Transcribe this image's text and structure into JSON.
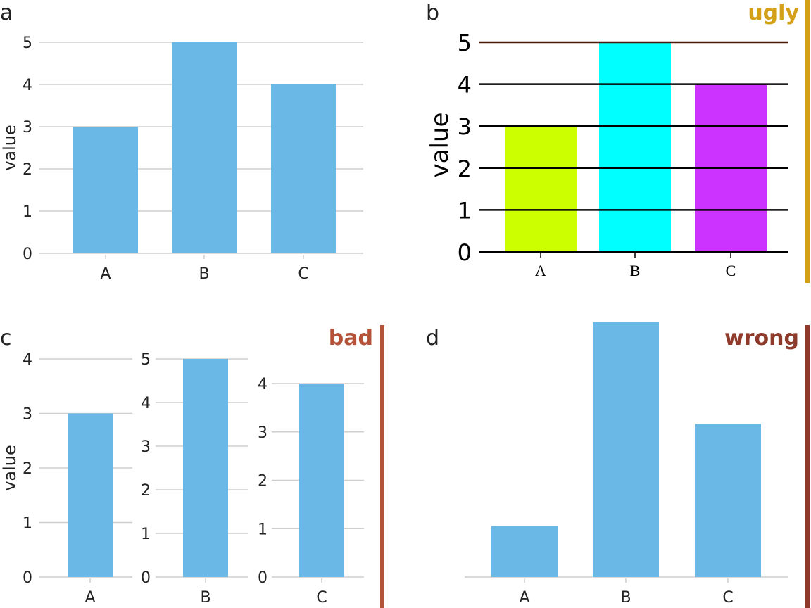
{
  "panels": {
    "a": {
      "letter": "a"
    },
    "b": {
      "letter": "b",
      "tag": "ugly"
    },
    "c": {
      "letter": "c",
      "tag": "bad"
    },
    "d": {
      "letter": "d",
      "tag": "wrong"
    }
  },
  "colors": {
    "bar": "#69B8E6",
    "grid": "#cfcfcf",
    "ugly_tag": "#D4A017",
    "bad_tag": "#B4533A",
    "wrong_tag": "#8F3B2C",
    "ugly_bar_A": "#CCFF00",
    "ugly_bar_B": "#00FFFF",
    "ugly_bar_C": "#CC33FF"
  },
  "chart_data": [
    {
      "panel": "a",
      "type": "bar",
      "categories": [
        "A",
        "B",
        "C"
      ],
      "values": [
        3,
        5,
        4
      ],
      "ylabel": "value",
      "ylim": [
        0,
        5
      ],
      "yticks": [
        0,
        1,
        2,
        3,
        4,
        5
      ],
      "grid": true
    },
    {
      "panel": "b",
      "type": "bar",
      "categories": [
        "A",
        "B",
        "C"
      ],
      "values": [
        3,
        5,
        4
      ],
      "ylabel": "value",
      "ylim": [
        0,
        5
      ],
      "yticks": [
        0,
        1,
        2,
        3,
        4,
        5
      ],
      "grid": true
    },
    {
      "panel": "c",
      "type": "bar",
      "ylabel": "value",
      "subplots": [
        {
          "category": "A",
          "value": 3,
          "ylim": [
            0,
            4
          ],
          "yticks": [
            0,
            1,
            2,
            3,
            4
          ]
        },
        {
          "category": "B",
          "value": 5,
          "ylim": [
            0,
            5
          ],
          "yticks": [
            0,
            1,
            2,
            3,
            4,
            5
          ]
        },
        {
          "category": "C",
          "value": 4,
          "ylim": [
            0,
            4
          ],
          "yticks": [
            0,
            1,
            2,
            3,
            4
          ]
        }
      ]
    },
    {
      "panel": "d",
      "type": "bar",
      "categories": [
        "A",
        "B",
        "C"
      ],
      "values": [
        3,
        5,
        4
      ],
      "ylim": [
        2.5,
        5.4
      ],
      "grid": false
    }
  ]
}
